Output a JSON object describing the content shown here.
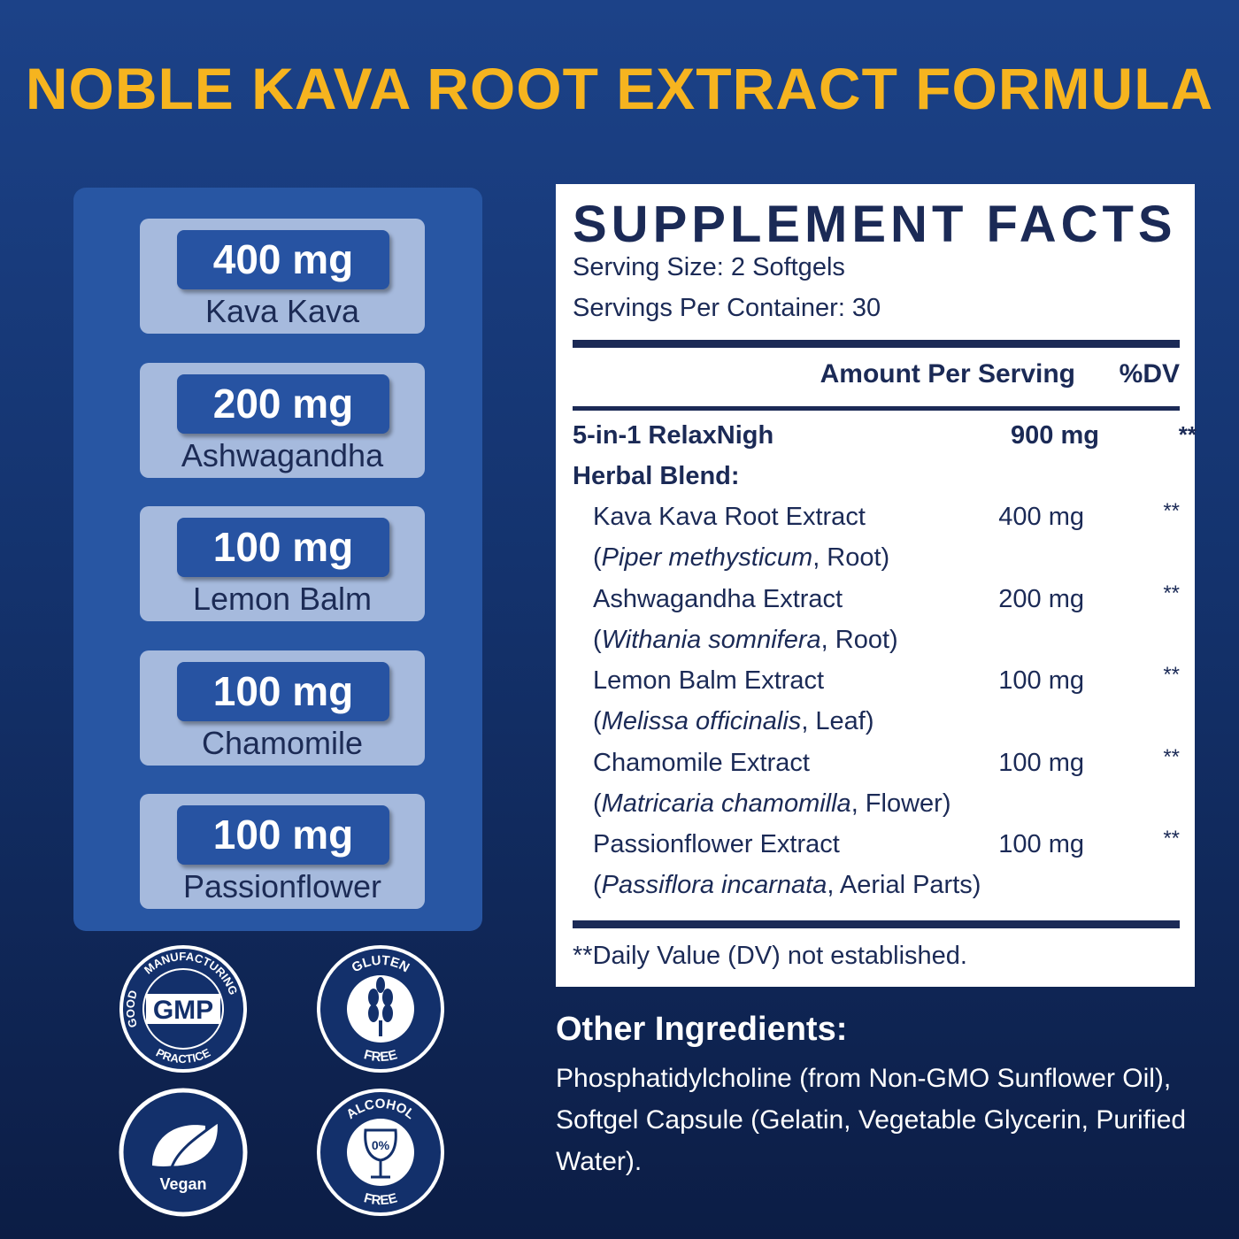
{
  "title": "NOBLE KAVA ROOT EXTRACT FORMULA",
  "ingredient_cards": [
    {
      "amount": "400 mg",
      "name": "Kava Kava"
    },
    {
      "amount": "200 mg",
      "name": "Ashwagandha"
    },
    {
      "amount": "100 mg",
      "name": "Lemon Balm"
    },
    {
      "amount": "100 mg",
      "name": "Chamomile"
    },
    {
      "amount": "100 mg",
      "name": "Passionflower"
    }
  ],
  "badges": {
    "gmp": {
      "top": "MANUFACTURING",
      "left": "GOOD",
      "center": "GMP",
      "bottom": "PRACTICE"
    },
    "gluten": {
      "top": "GLUTEN",
      "bottom": "FREE"
    },
    "vegan": {
      "label": "Vegan"
    },
    "alcohol": {
      "top": "ALCOHOL",
      "center": "0%",
      "bottom": "FREE"
    }
  },
  "facts": {
    "title": "SUPPLEMENT FACTS",
    "serving_size": "Serving Size: 2 Softgels",
    "servings": "Servings Per Container: 30",
    "header_amount": "Amount Per Serving",
    "header_dv": "%DV",
    "blend": {
      "name": "5-in-1 RelaxNigh",
      "name2": "Herbal Blend:",
      "amount": "900 mg",
      "dv": "**"
    },
    "rows": [
      {
        "name": "Kava Kava Root Extract",
        "amount": "400 mg",
        "dv": "**",
        "source": {
          "pre": "(",
          "latin": "Piper methysticum",
          "post": ", Root)"
        }
      },
      {
        "name": "Ashwagandha Extract",
        "amount": "200 mg",
        "dv": "**",
        "source": {
          "pre": "(",
          "latin": "Withania somnifera",
          "post": ", Root)"
        }
      },
      {
        "name": "Lemon Balm Extract",
        "amount": "100 mg",
        "dv": "**",
        "source": {
          "pre": "(",
          "latin": "Melissa officinalis",
          "post": ", Leaf)"
        }
      },
      {
        "name": "Chamomile Extract",
        "amount": "100 mg",
        "dv": "**",
        "source": {
          "pre": "(",
          "latin": "Matricaria chamomilla",
          "post": ", Flower)"
        }
      },
      {
        "name": "Passionflower Extract",
        "amount": "100 mg",
        "dv": "**",
        "source": {
          "pre": "(",
          "latin": "Passiflora incarnata",
          "post": ", Aerial Parts)"
        }
      }
    ],
    "footnote": "**Daily Value (DV) not established."
  },
  "other": {
    "title": "Other Ingredients:",
    "text": "Phosphatidylcholine (from Non-GMO Sunflower Oil), Softgel Capsule (Gelatin, Vegetable Glycerin, Purified Water)."
  }
}
